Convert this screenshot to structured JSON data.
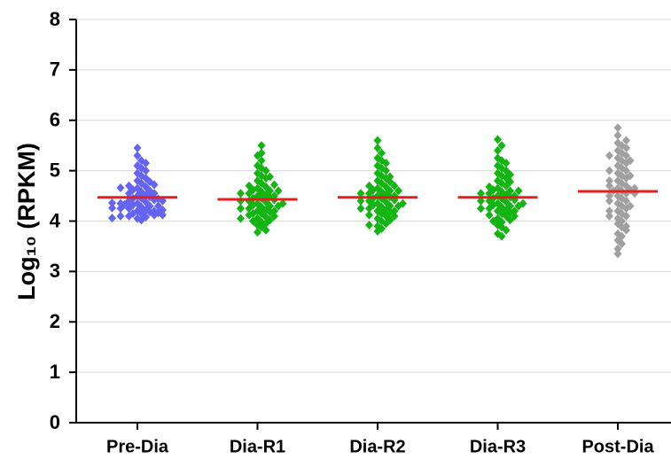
{
  "chart_data": {
    "type": "strip",
    "ylabel": "Log₁₀ (RPKM)",
    "categories": [
      "Pre-Dia",
      "Dia-R1",
      "Dia-R2",
      "Dia-R3",
      "Post-Dia"
    ],
    "colors": [
      "#6464f0",
      "#14b414",
      "#14b414",
      "#14b414",
      "#a0a0a0"
    ],
    "mean_color": "#e61e1e",
    "means": [
      4.47,
      4.43,
      4.47,
      4.47,
      4.59
    ],
    "groups": [
      [
        4.05,
        4.08,
        4.1,
        4.12,
        4.15,
        4.02,
        4.18,
        4.2,
        4.22,
        4.25,
        4.1,
        4.28,
        4.3,
        4.32,
        4.35,
        4.15,
        4.38,
        4.4,
        4.42,
        4.45,
        4.2,
        4.48,
        4.5,
        4.52,
        4.55,
        4.25,
        4.58,
        4.6,
        4.62,
        4.65,
        4.3,
        4.68,
        4.7,
        4.72,
        4.75,
        4.35,
        4.78,
        4.8,
        4.85,
        4.9,
        4.4,
        4.95,
        5.0,
        5.05,
        5.1,
        4.45,
        5.15,
        5.2,
        5.3,
        5.45,
        4.12,
        4.22,
        4.33,
        4.44,
        4.55,
        4.66,
        4.06,
        4.16,
        4.26,
        4.36
      ],
      [
        3.78,
        3.82,
        3.88,
        3.92,
        3.98,
        4.02,
        4.05,
        4.08,
        4.12,
        4.15,
        4.18,
        4.2,
        4.22,
        4.25,
        4.28,
        4.3,
        4.32,
        4.35,
        4.38,
        4.4,
        4.42,
        4.45,
        4.48,
        4.5,
        4.52,
        4.55,
        4.58,
        4.6,
        4.62,
        4.65,
        4.68,
        4.7,
        4.75,
        4.8,
        4.85,
        4.9,
        4.95,
        5.0,
        5.05,
        5.1,
        5.2,
        5.3,
        5.35,
        5.5,
        4.1,
        4.2,
        4.3,
        4.4,
        4.5,
        4.6,
        4.0,
        4.15,
        4.25,
        4.35,
        4.45,
        3.95,
        4.05,
        4.55,
        4.72,
        4.88
      ],
      [
        3.8,
        3.85,
        3.9,
        3.95,
        4.0,
        4.05,
        4.1,
        4.12,
        4.15,
        4.18,
        4.2,
        4.22,
        4.25,
        4.28,
        4.3,
        4.32,
        4.35,
        4.38,
        4.4,
        4.42,
        4.45,
        4.48,
        4.5,
        4.52,
        4.55,
        4.58,
        4.6,
        4.62,
        4.65,
        4.68,
        4.7,
        4.75,
        4.8,
        4.85,
        4.9,
        4.95,
        5.0,
        5.05,
        5.1,
        5.2,
        5.25,
        5.35,
        5.45,
        5.6,
        4.1,
        4.2,
        4.3,
        4.4,
        4.5,
        4.6,
        4.7,
        3.92,
        4.02,
        4.25,
        4.35,
        4.45,
        4.55,
        4.78,
        5.15,
        4.88
      ],
      [
        3.7,
        3.75,
        3.82,
        3.88,
        3.92,
        3.98,
        4.02,
        4.05,
        4.1,
        4.12,
        4.15,
        4.18,
        4.2,
        4.22,
        4.25,
        4.28,
        4.3,
        4.32,
        4.35,
        4.38,
        4.4,
        4.42,
        4.45,
        4.48,
        4.5,
        4.52,
        4.55,
        4.58,
        4.6,
        4.62,
        4.65,
        4.7,
        4.75,
        4.8,
        4.85,
        4.9,
        4.95,
        5.0,
        5.05,
        5.1,
        5.2,
        5.25,
        5.4,
        5.5,
        5.62,
        4.1,
        4.2,
        4.3,
        4.4,
        4.5,
        4.6,
        4.0,
        4.25,
        4.35,
        4.45,
        4.55,
        4.68,
        4.78,
        4.92,
        5.15
      ],
      [
        3.35,
        3.45,
        3.55,
        3.62,
        3.7,
        3.75,
        3.82,
        3.88,
        3.95,
        4.0,
        4.05,
        4.1,
        4.15,
        4.2,
        4.25,
        4.3,
        4.35,
        4.4,
        4.45,
        4.5,
        4.55,
        4.6,
        4.62,
        4.65,
        4.7,
        4.75,
        4.8,
        4.85,
        4.9,
        4.95,
        5.0,
        5.05,
        5.1,
        5.15,
        5.2,
        5.25,
        5.3,
        5.35,
        5.4,
        5.45,
        5.5,
        5.55,
        5.6,
        5.7,
        5.85,
        4.2,
        4.4,
        4.6,
        4.8,
        5.0,
        5.2,
        4.3,
        4.5,
        4.7,
        4.9,
        3.9,
        4.1,
        4.65,
        4.55,
        5.3
      ]
    ],
    "ylim": [
      0,
      8
    ],
    "yticks": [
      0,
      1,
      2,
      3,
      4,
      5,
      6,
      7,
      8
    ],
    "grid": true
  }
}
